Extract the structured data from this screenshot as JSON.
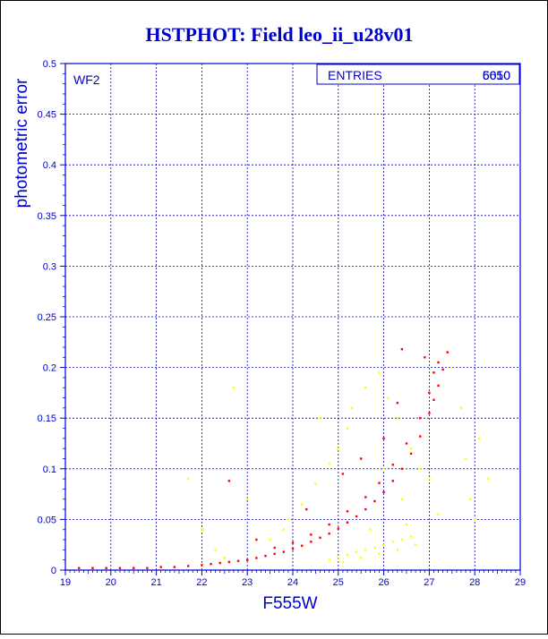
{
  "chart_data": {
    "type": "scatter",
    "title": "HSTPHOT: Field leo_ii_u28v01",
    "xlabel": "F555W",
    "ylabel": "photometric error",
    "panel_label": "WF2",
    "stats_box": {
      "label": "ENTRIES",
      "value": "5050",
      "overstruck_value": "6610"
    },
    "xlim": [
      19,
      29
    ],
    "ylim": [
      0,
      0.5
    ],
    "x_ticks": [
      19,
      20,
      21,
      22,
      23,
      24,
      25,
      26,
      27,
      28,
      29
    ],
    "x_tick_labels": [
      "19",
      "20",
      "21",
      "22",
      "23",
      "24",
      "25",
      "26",
      "27",
      "28",
      "29"
    ],
    "y_ticks": [
      0,
      0.05,
      0.1,
      0.15,
      0.2,
      0.25,
      0.3,
      0.35,
      0.4,
      0.45,
      0.5
    ],
    "y_tick_labels": [
      "0",
      "0.05",
      "0.1",
      "0.15",
      "0.2",
      "0.25",
      "0.3",
      "0.35",
      "0.4",
      "0.45",
      "0.5"
    ],
    "grid": true,
    "series": [
      {
        "color": "#ff0000",
        "points": [
          [
            19.3,
            0.002
          ],
          [
            19.6,
            0.002
          ],
          [
            19.9,
            0.002
          ],
          [
            20.2,
            0.002
          ],
          [
            20.5,
            0.002
          ],
          [
            20.8,
            0.002
          ],
          [
            21.1,
            0.003
          ],
          [
            21.4,
            0.003
          ],
          [
            21.7,
            0.004
          ],
          [
            22.0,
            0.005
          ],
          [
            22.2,
            0.006
          ],
          [
            22.4,
            0.007
          ],
          [
            22.6,
            0.008
          ],
          [
            22.8,
            0.009
          ],
          [
            23.0,
            0.01
          ],
          [
            23.2,
            0.012
          ],
          [
            23.4,
            0.014
          ],
          [
            23.6,
            0.016
          ],
          [
            23.8,
            0.018
          ],
          [
            24.0,
            0.021
          ],
          [
            24.2,
            0.024
          ],
          [
            24.4,
            0.028
          ],
          [
            24.6,
            0.032
          ],
          [
            24.8,
            0.036
          ],
          [
            25.0,
            0.041
          ],
          [
            25.2,
            0.047
          ],
          [
            25.4,
            0.053
          ],
          [
            25.6,
            0.06
          ],
          [
            25.8,
            0.068
          ],
          [
            26.0,
            0.077
          ],
          [
            26.2,
            0.088
          ],
          [
            26.4,
            0.1
          ],
          [
            26.6,
            0.115
          ],
          [
            26.8,
            0.132
          ],
          [
            27.0,
            0.155
          ],
          [
            27.1,
            0.168
          ],
          [
            27.2,
            0.182
          ],
          [
            27.3,
            0.198
          ],
          [
            27.4,
            0.215
          ],
          [
            23.6,
            0.022
          ],
          [
            24.0,
            0.027
          ],
          [
            24.4,
            0.035
          ],
          [
            24.8,
            0.045
          ],
          [
            25.2,
            0.058
          ],
          [
            25.6,
            0.072
          ],
          [
            25.9,
            0.086
          ],
          [
            26.2,
            0.104
          ],
          [
            26.5,
            0.125
          ],
          [
            26.8,
            0.15
          ],
          [
            27.0,
            0.175
          ],
          [
            27.2,
            0.205
          ],
          [
            22.6,
            0.088
          ],
          [
            23.2,
            0.03
          ],
          [
            24.3,
            0.06
          ],
          [
            25.1,
            0.095
          ],
          [
            25.5,
            0.11
          ],
          [
            26.0,
            0.13
          ],
          [
            26.3,
            0.165
          ],
          [
            26.4,
            0.218
          ],
          [
            26.9,
            0.21
          ],
          [
            27.1,
            0.195
          ]
        ]
      },
      {
        "color": "#ffff00",
        "points": [
          [
            21.7,
            0.09
          ],
          [
            22.7,
            0.18
          ],
          [
            22.3,
            0.02
          ],
          [
            23.5,
            0.03
          ],
          [
            23.9,
            0.05
          ],
          [
            24.2,
            0.065
          ],
          [
            24.5,
            0.085
          ],
          [
            24.8,
            0.105
          ],
          [
            25.0,
            0.12
          ],
          [
            25.2,
            0.14
          ],
          [
            25.3,
            0.16
          ],
          [
            25.6,
            0.18
          ],
          [
            25.9,
            0.195
          ],
          [
            26.1,
            0.17
          ],
          [
            26.3,
            0.15
          ],
          [
            26.6,
            0.12
          ],
          [
            26.8,
            0.1
          ],
          [
            27.0,
            0.09
          ],
          [
            27.5,
            0.2
          ],
          [
            27.8,
            0.11
          ],
          [
            28.1,
            0.13
          ],
          [
            28.3,
            0.09
          ],
          [
            27.9,
            0.07
          ],
          [
            26.4,
            0.07
          ],
          [
            25.7,
            0.04
          ],
          [
            24.8,
            0.01
          ],
          [
            25.0,
            0.012
          ],
          [
            25.2,
            0.015
          ],
          [
            25.4,
            0.018
          ],
          [
            25.6,
            0.02
          ],
          [
            25.8,
            0.022
          ],
          [
            26.0,
            0.025
          ],
          [
            26.2,
            0.028
          ],
          [
            26.4,
            0.03
          ],
          [
            26.6,
            0.033
          ],
          [
            25.1,
            0.008
          ],
          [
            25.5,
            0.012
          ],
          [
            25.9,
            0.016
          ],
          [
            26.3,
            0.02
          ],
          [
            26.7,
            0.025
          ],
          [
            22.0,
            0.04
          ],
          [
            23.0,
            0.07
          ],
          [
            24.6,
            0.15
          ],
          [
            26.0,
            0.1
          ],
          [
            26.5,
            0.045
          ],
          [
            27.2,
            0.055
          ],
          [
            27.7,
            0.16
          ],
          [
            28.0,
            0.05
          ],
          [
            22.5,
            0.012
          ],
          [
            23.8,
            0.04
          ]
        ]
      }
    ]
  },
  "colors": {
    "axes": "#0000cc",
    "grid": "#0000cc",
    "title": "#0000cc",
    "background": "#ffffff"
  }
}
